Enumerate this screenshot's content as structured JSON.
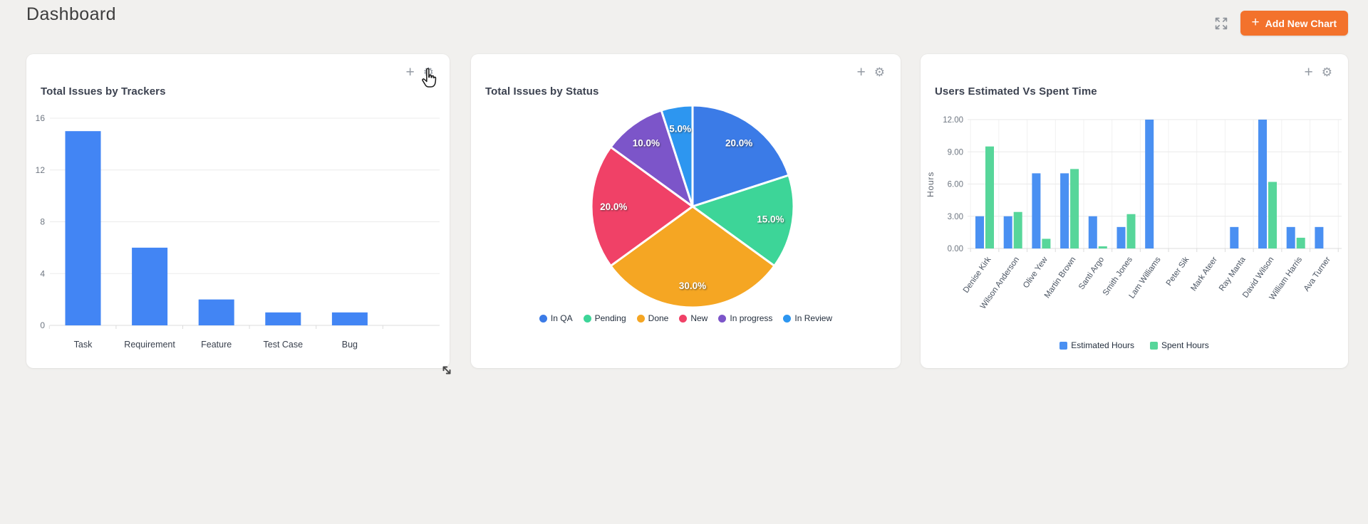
{
  "header": {
    "title": "Dashboard",
    "add_chart_button": {
      "icon": "+",
      "label": "Add New Chart"
    }
  },
  "icons": {
    "fullscreen": "expand-arrows-icon",
    "card_add_glyph": "+",
    "card_settings_glyph": "⚙",
    "cursor": "hand-pointer-icon",
    "resize": "diagonal-resize-arrow-icon"
  },
  "colors": {
    "accent_orange": "#f3722c",
    "tracker_bar_blue": "#4285f4",
    "estimated_blue": "#4a90f2",
    "spent_green": "#57d69a",
    "page_bg": "#f1f0ee",
    "card_bg": "#ffffff"
  },
  "cards": [
    {
      "title": "Total Issues by Trackers"
    },
    {
      "title": "Total Issues by Status"
    },
    {
      "title": "Users Estimated Vs Spent Time"
    }
  ],
  "chart_data": [
    {
      "type": "bar",
      "title": "Total Issues by Trackers",
      "categories": [
        "Task",
        "Requirement",
        "Feature",
        "Test Case",
        "Bug"
      ],
      "values": [
        15,
        6,
        2,
        1,
        1
      ],
      "xlabel": "",
      "ylabel": "",
      "ylim": [
        0,
        16
      ],
      "yticks": [
        0,
        4,
        8,
        12,
        16
      ],
      "bar_color": "#4285f4",
      "grid": true,
      "legend": false
    },
    {
      "type": "pie",
      "title": "Total Issues by Status",
      "labels": [
        "In QA",
        "Pending",
        "Done",
        "New",
        "In progress",
        "In Review"
      ],
      "values": [
        20,
        15,
        30,
        20,
        10,
        5
      ],
      "slice_labels": [
        "20.0%",
        "15.0%",
        "30.0%",
        "20.0%",
        "10.0%",
        "5.0%"
      ],
      "colors": [
        "#3b7be7",
        "#3dd598",
        "#f5a623",
        "#f04167",
        "#7c55c9",
        "#2d96f0"
      ],
      "start_angle_deg": 0,
      "direction": "clockwise",
      "legend_position": "bottom"
    },
    {
      "type": "bar",
      "title": "Users Estimated Vs Spent Time",
      "categories": [
        "Denise Kirk",
        "Wilson Anderson",
        "Olive Yew",
        "Martin Brown",
        "Santi Argo",
        "Smith Jones",
        "Lam Williams",
        "Peter Sik",
        "Mark Ateer",
        "Ray Manta",
        "David Wilson",
        "William Harris",
        "Ava Turner"
      ],
      "series": [
        {
          "name": "Estimated Hours",
          "color": "#4a90f2",
          "values": [
            3,
            3,
            7,
            7,
            3,
            2,
            12,
            0,
            0,
            2,
            12,
            2,
            2
          ]
        },
        {
          "name": "Spent Hours",
          "color": "#57d69a",
          "values": [
            9.5,
            3.4,
            0.9,
            7.4,
            0.2,
            3.2,
            0,
            0,
            0,
            0,
            6.2,
            1,
            0
          ]
        }
      ],
      "xlabel": "",
      "ylabel": "Hours",
      "ylim": [
        0,
        12
      ],
      "yticks": [
        "0.00",
        "3.00",
        "6.00",
        "9.00",
        "12.00"
      ],
      "grid": true,
      "legend_position": "bottom"
    }
  ]
}
